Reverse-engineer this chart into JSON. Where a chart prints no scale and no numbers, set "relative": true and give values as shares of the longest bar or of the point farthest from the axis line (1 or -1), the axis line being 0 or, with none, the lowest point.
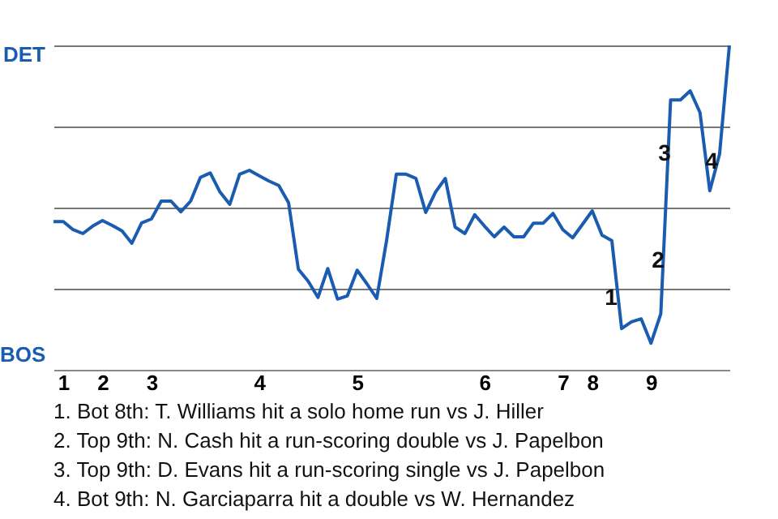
{
  "chart_data": {
    "type": "line",
    "relative": true,
    "categories": [
      null,
      "1",
      null,
      null,
      null,
      "2",
      null,
      null,
      null,
      null,
      "3",
      null,
      null,
      null,
      null,
      null,
      null,
      null,
      null,
      null,
      null,
      "4",
      null,
      null,
      null,
      null,
      null,
      null,
      null,
      null,
      null,
      "5",
      null,
      null,
      null,
      null,
      null,
      null,
      null,
      null,
      null,
      null,
      null,
      null,
      "6",
      null,
      null,
      null,
      null,
      null,
      null,
      null,
      "7",
      null,
      null,
      "8",
      null,
      null,
      null,
      null,
      null,
      "9",
      null,
      null,
      null,
      null,
      null,
      null,
      null,
      null
    ],
    "series": [
      {
        "color": "#1a5cb0",
        "values": [
          0.457,
          0.457,
          0.432,
          0.42,
          0.443,
          0.46,
          0.445,
          0.428,
          0.39,
          0.453,
          0.465,
          0.52,
          0.52,
          0.487,
          0.52,
          0.593,
          0.607,
          0.548,
          0.51,
          0.603,
          0.615,
          0.598,
          0.582,
          0.568,
          0.515,
          0.31,
          0.273,
          0.223,
          0.312,
          0.218,
          0.228,
          0.307,
          0.265,
          0.22,
          0.398,
          0.603,
          0.603,
          0.59,
          0.485,
          0.548,
          0.59,
          0.44,
          0.42,
          0.478,
          0.443,
          0.41,
          0.44,
          0.41,
          0.41,
          0.452,
          0.452,
          0.482,
          0.432,
          0.407,
          0.448,
          0.49,
          0.415,
          0.398,
          0.127,
          0.148,
          0.157,
          0.082,
          0.173,
          0.832,
          0.832,
          0.86,
          0.793,
          0.552,
          0.665,
          1.0
        ]
      }
    ],
    "grid": "y",
    "annotations": [
      "DET",
      "BOS",
      "1",
      "2",
      "3",
      "4",
      "1. Bot 8th: T. Williams hit a solo home run vs J. Hiller",
      "2. Top 9th: N. Cash hit a run-scoring double vs J. Papelbon",
      "3. Top 9th: D. Evans hit a run-scoring single vs J. Papelbon",
      "4. Bot 9th: N. Garciaparra hit a double vs W. Hernandez"
    ]
  }
}
